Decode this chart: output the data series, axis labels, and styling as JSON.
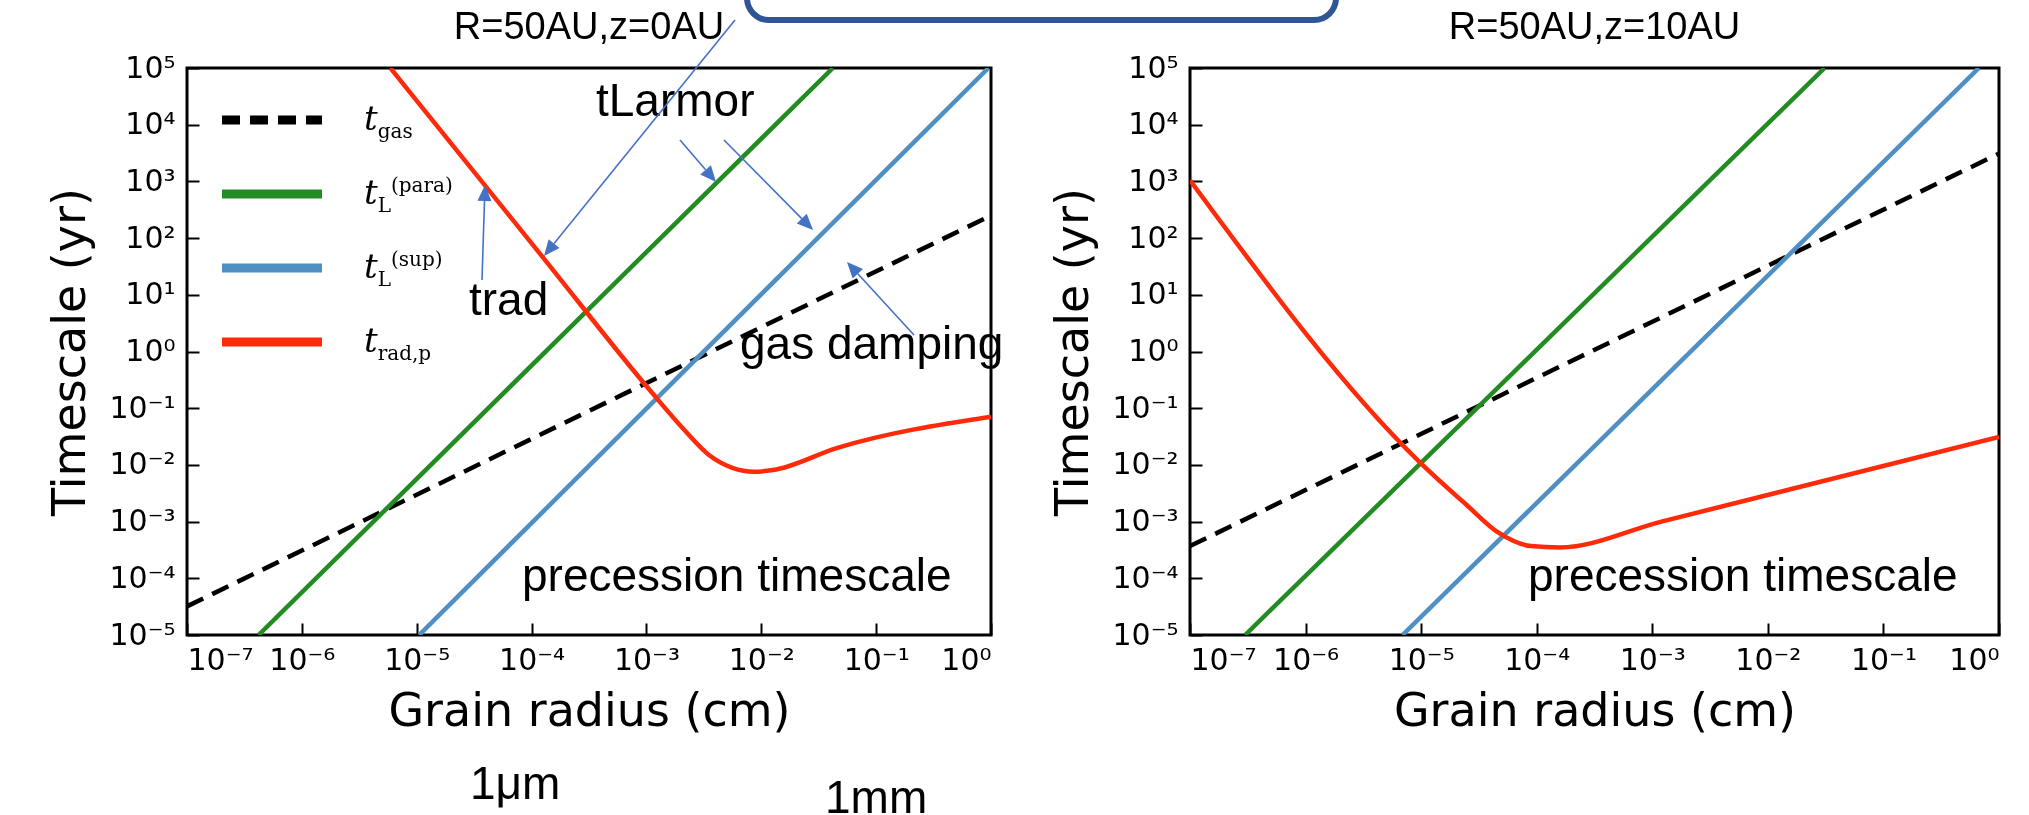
{
  "chart_data": [
    {
      "type": "line",
      "title": "R=50AU,z=0AU",
      "xlabel": "Grain radius (cm)",
      "ylabel": "Timescale (yr)",
      "log": "xy",
      "xlim": [
        1e-07,
        1
      ],
      "ylim": [
        1e-05,
        100000
      ],
      "xticks": [
        {
          "value": 1e-07,
          "label": "10⁻⁷"
        },
        {
          "value": 1e-06,
          "label": "10⁻⁶"
        },
        {
          "value": 1e-05,
          "label": "10⁻⁵"
        },
        {
          "value": 0.0001,
          "label": "10⁻⁴"
        },
        {
          "value": 0.001,
          "label": "10⁻³"
        },
        {
          "value": 0.01,
          "label": "10⁻²"
        },
        {
          "value": 0.1,
          "label": "10⁻¹"
        },
        {
          "value": 1,
          "label": "10⁰"
        }
      ],
      "yticks": [
        {
          "value": 1e-05,
          "label": "10⁻⁵"
        },
        {
          "value": 0.0001,
          "label": "10⁻⁴"
        },
        {
          "value": 0.001,
          "label": "10⁻³"
        },
        {
          "value": 0.01,
          "label": "10⁻²"
        },
        {
          "value": 0.1,
          "label": "10⁻¹"
        },
        {
          "value": 1,
          "label": "10⁰"
        },
        {
          "value": 10,
          "label": "10¹"
        },
        {
          "value": 100,
          "label": "10²"
        },
        {
          "value": 1000,
          "label": "10³"
        },
        {
          "value": 10000,
          "label": "10⁴"
        },
        {
          "value": 100000,
          "label": "10⁵"
        }
      ],
      "legend": "top left",
      "series": [
        {
          "name": "t$_{gas}$",
          "color": "#000000",
          "line_style": "dashed",
          "x": [
            1e-07,
            1
          ],
          "values": [
            3.2e-05,
            250
          ]
        },
        {
          "name": "t$_{L}$$^{(para)}$",
          "color": "#228b22",
          "line_style": "solid",
          "x": [
            4.2e-07,
            0.042
          ],
          "values": [
            1e-05,
            100000
          ]
        },
        {
          "name": "t$_{L}$$^{(sup)}$",
          "color": "#4f8fc4",
          "line_style": "solid",
          "x": [
            1.05e-05,
            0.95
          ],
          "values": [
            1e-05,
            100000
          ]
        },
        {
          "name": "t$_{rad,p}$",
          "color": "#ff2a0a",
          "line_style": "solid",
          "x": [
            5.9e-06,
            0.000129,
            0.0011,
            0.0021,
            0.0035,
            0.0056,
            0.0087,
            0.0126,
            0.046,
            1
          ],
          "values": [
            100000,
            42.7,
            0.195,
            0.043,
            0.015,
            0.0089,
            0.0076,
            0.0081,
            0.02,
            0.071
          ]
        }
      ],
      "annotations": [
        "tLarmor",
        "trad",
        "gas damping",
        "precession timescale",
        "1μm",
        "1mm"
      ]
    },
    {
      "type": "line",
      "title": "R=50AU,z=10AU",
      "xlabel": "Grain radius (cm)",
      "ylabel": "Timescale (yr)",
      "log": "xy",
      "xlim": [
        1e-07,
        1
      ],
      "ylim": [
        1e-05,
        100000
      ],
      "xticks": [
        {
          "value": 1e-07,
          "label": "10⁻⁷"
        },
        {
          "value": 1e-06,
          "label": "10⁻⁶"
        },
        {
          "value": 1e-05,
          "label": "10⁻⁵"
        },
        {
          "value": 0.0001,
          "label": "10⁻⁴"
        },
        {
          "value": 0.001,
          "label": "10⁻³"
        },
        {
          "value": 0.01,
          "label": "10⁻²"
        },
        {
          "value": 0.1,
          "label": "10⁻¹"
        },
        {
          "value": 1,
          "label": "10⁰"
        }
      ],
      "yticks": [
        {
          "value": 1e-05,
          "label": "10⁻⁵"
        },
        {
          "value": 0.0001,
          "label": "10⁻⁴"
        },
        {
          "value": 0.001,
          "label": "10⁻³"
        },
        {
          "value": 0.01,
          "label": "10⁻²"
        },
        {
          "value": 0.1,
          "label": "10⁻¹"
        },
        {
          "value": 1,
          "label": "10⁰"
        },
        {
          "value": 10,
          "label": "10¹"
        },
        {
          "value": 100,
          "label": "10²"
        },
        {
          "value": 1000,
          "label": "10³"
        },
        {
          "value": 10000,
          "label": "10⁴"
        },
        {
          "value": 100000,
          "label": "10⁵"
        }
      ],
      "series": [
        {
          "color": "#000000",
          "line_style": "dashed",
          "x": [
            1e-07,
            1
          ],
          "values": [
            0.00037,
            3100
          ]
        },
        {
          "color": "#228b22",
          "line_style": "solid",
          "x": [
            3e-07,
            0.031
          ],
          "values": [
            1e-05,
            100000
          ]
        },
        {
          "color": "#4f8fc4",
          "line_style": "solid",
          "x": [
            6.9e-06,
            0.67
          ],
          "values": [
            1e-05,
            100000
          ]
        },
        {
          "color": "#ff2a0a",
          "line_style": "solid",
          "x": [
            1e-07,
            9.8e-06,
            2.45e-05,
            4.7e-05,
            8.9e-05,
            0.000158,
            0.0012,
            1
          ],
          "values": [
            1050,
            0.011,
            0.002,
            0.00063,
            0.00037,
            0.00035,
            0.001,
            0.031
          ]
        }
      ],
      "annotations": [
        "precession timescale"
      ]
    }
  ]
}
